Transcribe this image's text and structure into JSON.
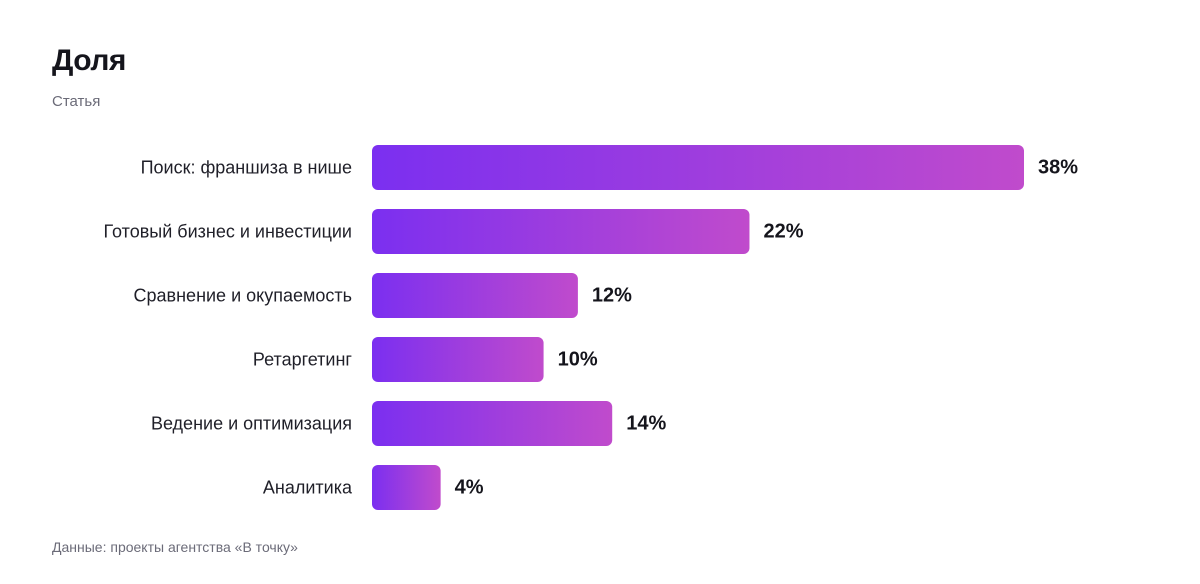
{
  "chart_data": {
    "type": "bar",
    "orientation": "horizontal",
    "title": "Доля",
    "subtitle": "Статья",
    "categories": [
      "Поиск: франшиза в нише",
      "Готовый бизнес и инвестиции",
      "Сравнение и окупаемость",
      "Ретаргетинг",
      "Ведение и оптимизация",
      "Аналитика"
    ],
    "values": [
      38,
      22,
      12,
      10,
      14,
      4
    ],
    "value_labels": [
      "38%",
      "22%",
      "12%",
      "10%",
      "14%",
      "4%"
    ],
    "unit": "%",
    "grid": false,
    "legend": "none",
    "bar_gradient": [
      "#7b2ff0",
      "#c04bcc"
    ]
  },
  "footer": {
    "source": "Данные: проекты агентства «В точку»"
  }
}
